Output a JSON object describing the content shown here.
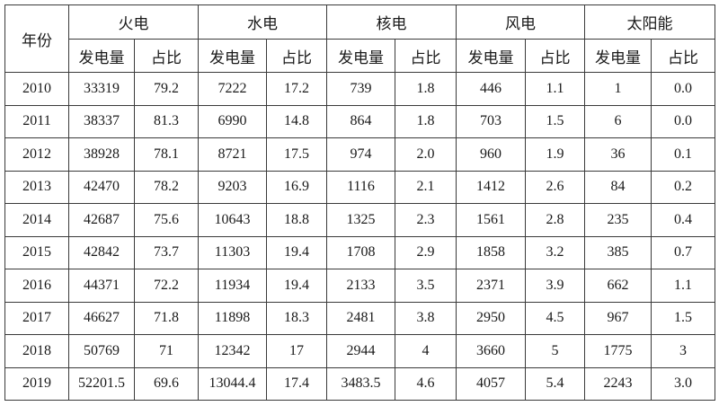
{
  "table": {
    "year_header": "年份",
    "groups": [
      "火电",
      "水电",
      "核电",
      "风电",
      "太阳能"
    ],
    "subheaders": [
      "发电量",
      "占比"
    ],
    "rows": [
      {
        "year": "2010",
        "cells": [
          "33319",
          "79.2",
          "7222",
          "17.2",
          "739",
          "1.8",
          "446",
          "1.1",
          "1",
          "0.0"
        ]
      },
      {
        "year": "2011",
        "cells": [
          "38337",
          "81.3",
          "6990",
          "14.8",
          "864",
          "1.8",
          "703",
          "1.5",
          "6",
          "0.0"
        ]
      },
      {
        "year": "2012",
        "cells": [
          "38928",
          "78.1",
          "8721",
          "17.5",
          "974",
          "2.0",
          "960",
          "1.9",
          "36",
          "0.1"
        ]
      },
      {
        "year": "2013",
        "cells": [
          "42470",
          "78.2",
          "9203",
          "16.9",
          "1116",
          "2.1",
          "1412",
          "2.6",
          "84",
          "0.2"
        ]
      },
      {
        "year": "2014",
        "cells": [
          "42687",
          "75.6",
          "10643",
          "18.8",
          "1325",
          "2.3",
          "1561",
          "2.8",
          "235",
          "0.4"
        ]
      },
      {
        "year": "2015",
        "cells": [
          "42842",
          "73.7",
          "11303",
          "19.4",
          "1708",
          "2.9",
          "1858",
          "3.2",
          "385",
          "0.7"
        ]
      },
      {
        "year": "2016",
        "cells": [
          "44371",
          "72.2",
          "11934",
          "19.4",
          "2133",
          "3.5",
          "2371",
          "3.9",
          "662",
          "1.1"
        ]
      },
      {
        "year": "2017",
        "cells": [
          "46627",
          "71.8",
          "11898",
          "18.3",
          "2481",
          "3.8",
          "2950",
          "4.5",
          "967",
          "1.5"
        ]
      },
      {
        "year": "2018",
        "cells": [
          "50769",
          "71",
          "12342",
          "17",
          "2944",
          "4",
          "3660",
          "5",
          "1775",
          "3"
        ]
      },
      {
        "year": "2019",
        "cells": [
          "52201.5",
          "69.6",
          "13044.4",
          "17.4",
          "3483.5",
          "4.6",
          "4057",
          "5.4",
          "2243",
          "3.0"
        ]
      }
    ]
  }
}
